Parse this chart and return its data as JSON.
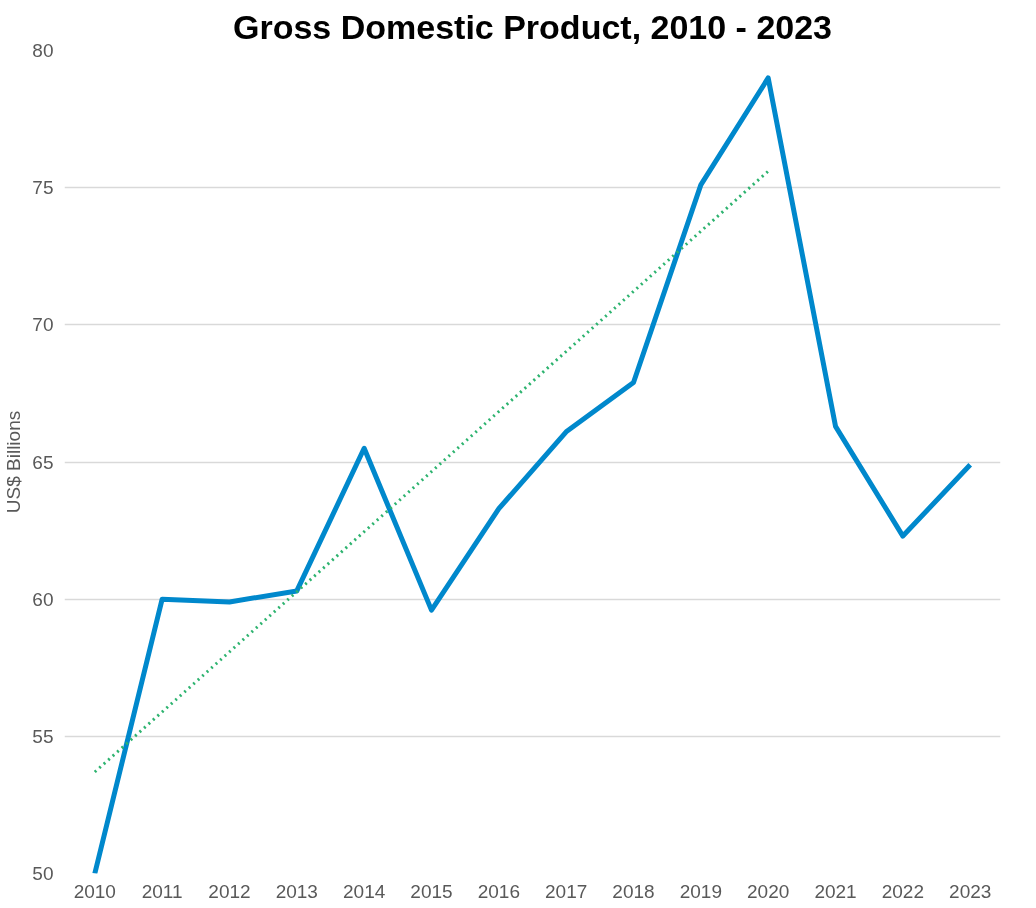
{
  "chart_data": {
    "type": "line",
    "title": "Gross Domestic Product, 2010 - 2023",
    "ylabel": "US$ Billions",
    "x": [
      2010,
      2011,
      2012,
      2013,
      2014,
      2015,
      2016,
      2017,
      2018,
      2019,
      2020,
      2021,
      2022,
      2023
    ],
    "series": [
      {
        "color": "#0088cc",
        "values": [
          50.0,
          60.0,
          59.9,
          60.3,
          65.5,
          59.6,
          63.3,
          66.1,
          67.9,
          75.1,
          79.0,
          66.3,
          62.3,
          64.9
        ]
      },
      {
        "type": "line",
        "color": "#2db36f",
        "line_style": "dotted",
        "x": [
          2010,
          2020
        ],
        "values": [
          53.7,
          75.6
        ]
      }
    ],
    "xlim": [
      2009.55,
      2023.45
    ],
    "xticks": [
      2010,
      2011,
      2012,
      2013,
      2014,
      2015,
      2016,
      2017,
      2018,
      2019,
      2020,
      2021,
      2022,
      2023
    ],
    "ylim": [
      50,
      80
    ],
    "yticks": [
      50,
      55,
      60,
      65,
      70,
      75,
      80
    ],
    "grid": "y",
    "marker": "none",
    "line_style": "solid"
  }
}
